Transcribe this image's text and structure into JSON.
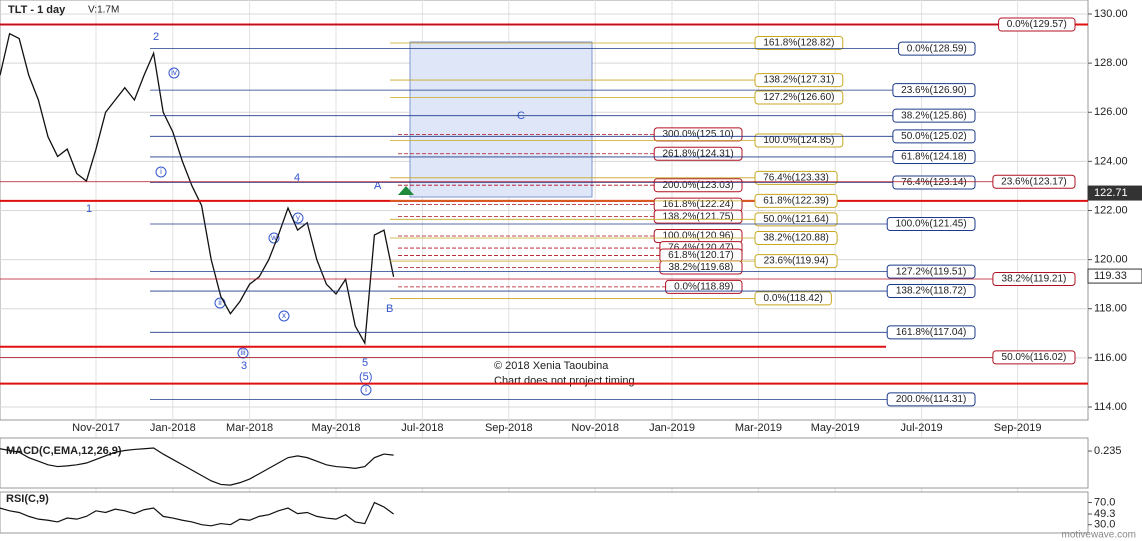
{
  "chart_data": [
    {
      "type": "line",
      "title": "TLT - 1 day",
      "subtitle": "V:1.7M",
      "categories": [
        null,
        null,
        null,
        null,
        null,
        null,
        null,
        null,
        null,
        null,
        "Nov-2017",
        null,
        null,
        null,
        null,
        null,
        null,
        null,
        "Jan-2018",
        null,
        null,
        null,
        null,
        null,
        null,
        null,
        "Mar-2018",
        null,
        null,
        null,
        null,
        null,
        null,
        null,
        null,
        "May-2018",
        null,
        null,
        null,
        null,
        null,
        null,
        null,
        null,
        "Jul-2018",
        null,
        null,
        null,
        null,
        null,
        null,
        null,
        null,
        "Sep-2018",
        null,
        null,
        null,
        null,
        null,
        null,
        null,
        null,
        "Nov-2018",
        null,
        null,
        null,
        null,
        null,
        null,
        null,
        "Jan-2019",
        null,
        null,
        null,
        null,
        null,
        null,
        null,
        null,
        "Mar-2019",
        null,
        null,
        null,
        null,
        null,
        null,
        null,
        "May-2019",
        null,
        null,
        null,
        null,
        null,
        null,
        null,
        null,
        "Jul-2019",
        null,
        null,
        null,
        null,
        null,
        null,
        null,
        null,
        null,
        "Sep-2019",
        null,
        null,
        null,
        null,
        null,
        null
      ],
      "series": [
        {
          "color": "#111111",
          "values": [
            127.5,
            129.2,
            129.0,
            127.5,
            126.5,
            125.0,
            124.2,
            124.5,
            123.5,
            123.2,
            124.5,
            126.0,
            126.5,
            127.0,
            126.5,
            127.5,
            128.4,
            126.0,
            125.2,
            124.0,
            123.0,
            122.2,
            120.0,
            118.5,
            117.8,
            118.3,
            119.0,
            119.3,
            120.0,
            121.0,
            122.1,
            121.2,
            121.5,
            120.0,
            119.0,
            118.6,
            119.2,
            117.3,
            116.6,
            121.0,
            121.2,
            119.3,
            null,
            null,
            null,
            null,
            null,
            null,
            null,
            null,
            null,
            null,
            null,
            null,
            null,
            null,
            null,
            null,
            null,
            null,
            null,
            null,
            null,
            null,
            null,
            null,
            null,
            null,
            null,
            null,
            null,
            null,
            null,
            null,
            null,
            null,
            null,
            null,
            null,
            null,
            null,
            null,
            null,
            null,
            null,
            null,
            null,
            null,
            null,
            null,
            null,
            null,
            null,
            null,
            null,
            null,
            null,
            null,
            null,
            null,
            null,
            null,
            null,
            null,
            null,
            null,
            null,
            null,
            null,
            null,
            null,
            null,
            null
          ]
        }
      ],
      "ylim": [
        113.47,
        130.57
      ],
      "yticks": [
        {
          "value": 114,
          "label": "114.00"
        },
        {
          "value": 116,
          "label": "116.00"
        },
        {
          "value": 118,
          "label": "118.00"
        },
        {
          "value": 120,
          "label": "120.00"
        },
        {
          "value": 122,
          "label": "122.00"
        },
        {
          "value": 124,
          "label": "124.00"
        },
        {
          "value": 126,
          "label": "126.00"
        },
        {
          "value": 128,
          "label": "128.00"
        },
        {
          "value": 130,
          "label": "130.00"
        }
      ],
      "grid": true,
      "price_markers": [
        122.71,
        119.33
      ],
      "horizontal_lines": [
        {
          "value": 129.57,
          "color": "#e01010"
        },
        {
          "value": 122.39,
          "color": "#e01010"
        },
        {
          "value": 116.45,
          "color": "#e01010"
        },
        {
          "value": 114.95,
          "color": "#e01010"
        }
      ],
      "fib_sets": [
        {
          "color": "#b01020",
          "items": [
            {
              "label": "300.0%(125.10)",
              "value": 125.1
            },
            {
              "label": "261.8%(124.31)",
              "value": 124.31
            },
            {
              "label": "200.0%(123.03)",
              "value": 123.03
            },
            {
              "label": "161.8%(122.24)",
              "value": 122.24
            },
            {
              "label": "138.2%(121.75)",
              "value": 121.75
            },
            {
              "label": "100.0%(120.96)",
              "value": 120.96
            },
            {
              "label": "76.4%(120.47)",
              "value": 120.47
            },
            {
              "label": "61.8%(120.17)",
              "value": 120.17
            },
            {
              "label": "38.2%(119.68)",
              "value": 119.68
            },
            {
              "label": "0.0%(118.89)",
              "value": 118.89
            }
          ]
        },
        {
          "color": "#c8a820",
          "items": [
            {
              "label": "161.8%(128.82)",
              "value": 128.82
            },
            {
              "label": "138.2%(127.31)",
              "value": 127.31
            },
            {
              "label": "127.2%(126.60)",
              "value": 126.6
            },
            {
              "label": "100.0%(124.85)",
              "value": 124.85
            },
            {
              "label": "76.4%(123.33)",
              "value": 123.33
            },
            {
              "label": "61.8%(122.39)",
              "value": 122.39
            },
            {
              "label": "50.0%(121.64)",
              "value": 121.64
            },
            {
              "label": "38.2%(120.88)",
              "value": 120.88
            },
            {
              "label": "23.6%(119.94)",
              "value": 119.94
            },
            {
              "label": "0.0%(118.42)",
              "value": 118.42
            }
          ]
        },
        {
          "color": "#1c3a8a",
          "items": [
            {
              "label": "0.0%(128.59)",
              "value": 128.59
            },
            {
              "label": "23.6%(126.90)",
              "value": 126.9
            },
            {
              "label": "38.2%(125.86)",
              "value": 125.86
            },
            {
              "label": "50.0%(125.02)",
              "value": 125.02
            },
            {
              "label": "61.8%(124.18)",
              "value": 124.18
            },
            {
              "label": "76.4%(123.14)",
              "value": 123.14
            },
            {
              "label": "100.0%(121.45)",
              "value": 121.45
            },
            {
              "label": "127.2%(119.51)",
              "value": 119.51
            },
            {
              "label": "138.2%(118.72)",
              "value": 118.72
            },
            {
              "label": "161.8%(117.04)",
              "value": 117.04
            },
            {
              "label": "200.0%(114.31)",
              "value": 114.31
            }
          ]
        },
        {
          "color": "#b01020",
          "items": [
            {
              "label": "0.0%(129.57)",
              "value": 129.57
            },
            {
              "label": "23.6%(123.17)",
              "value": 123.17
            },
            {
              "label": "38.2%(119.21)",
              "value": 119.21
            },
            {
              "label": "50.0%(116.02)",
              "value": 116.02
            }
          ]
        }
      ],
      "wave_labels": [
        "1",
        "2",
        "3",
        "4",
        "5",
        "(5)",
        "A",
        "B",
        "C",
        "i",
        "ii",
        "iii",
        "iv",
        "w",
        "x",
        "y",
        "i"
      ],
      "annotations": [
        "© 2018 Xenia Taoubina",
        "Chart does not project timing"
      ],
      "watermark": "motivewave.com"
    },
    {
      "type": "line",
      "title": "MACD(C,EMA,12,26,9)",
      "ylim": [
        -0.8,
        0.6
      ],
      "yticks": [
        0.235
      ],
      "color": "#111111",
      "values": [
        0.3,
        0.25,
        0.2,
        0.05,
        -0.05,
        -0.15,
        -0.2,
        -0.18,
        -0.15,
        -0.1,
        0.0,
        0.1,
        0.2,
        0.25,
        0.28,
        0.3,
        0.32,
        0.15,
        0.0,
        -0.15,
        -0.3,
        -0.45,
        -0.6,
        -0.7,
        -0.72,
        -0.65,
        -0.55,
        -0.4,
        -0.25,
        -0.1,
        0.05,
        0.1,
        0.05,
        -0.05,
        -0.15,
        -0.2,
        -0.22,
        -0.25,
        -0.2,
        0.05,
        0.15,
        0.12
      ]
    },
    {
      "type": "line",
      "title": "RSI(C,9)",
      "ylim": [
        15,
        89
      ],
      "yticks": [
        {
          "value": 70,
          "label": "70.0"
        },
        49.3,
        {
          "value": 30,
          "label": "30.0"
        }
      ],
      "color": "#111111",
      "values": [
        60,
        55,
        52,
        45,
        40,
        38,
        35,
        42,
        40,
        45,
        55,
        52,
        58,
        55,
        50,
        57,
        60,
        45,
        42,
        38,
        35,
        30,
        28,
        32,
        30,
        40,
        38,
        45,
        48,
        55,
        60,
        50,
        52,
        45,
        42,
        40,
        48,
        35,
        32,
        70,
        62,
        49.3
      ]
    }
  ]
}
